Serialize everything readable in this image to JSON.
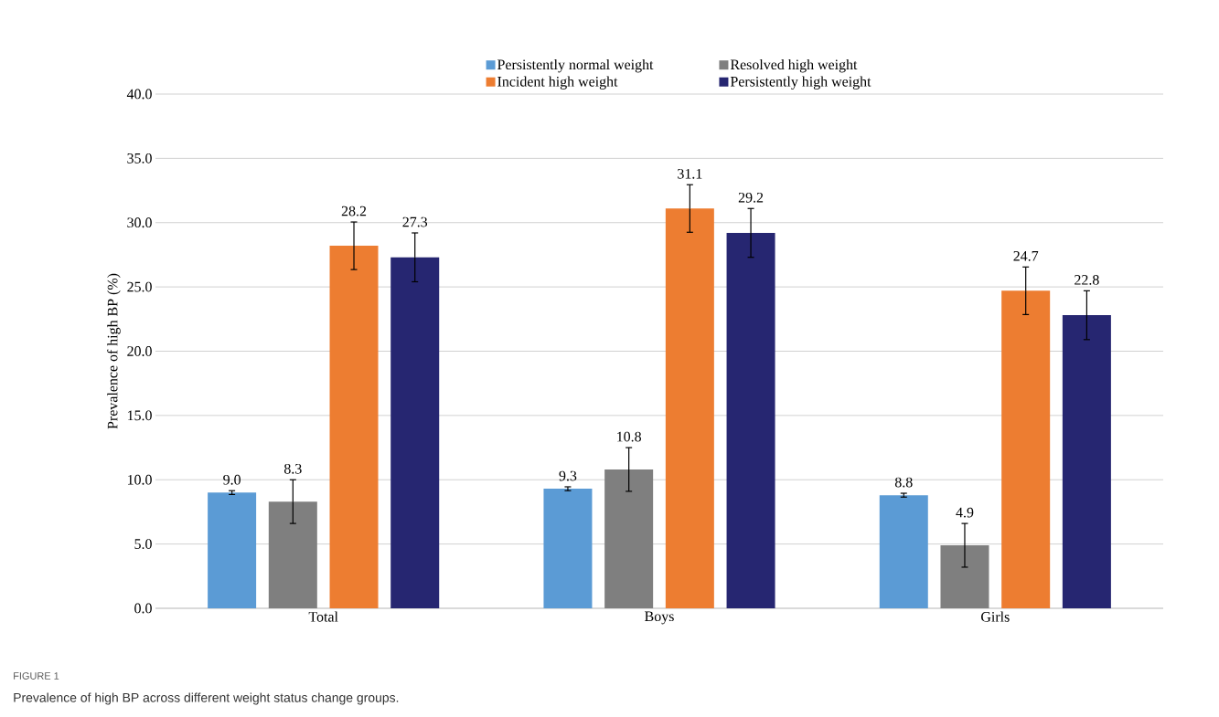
{
  "chart_data": {
    "type": "bar",
    "ylabel": "Prevalence of high BP (%)",
    "categories": [
      "Total",
      "Boys",
      "Girls"
    ],
    "series": [
      {
        "name": "Persistently normal weight",
        "color": "#5b9bd5",
        "values": [
          9.0,
          9.3,
          8.8
        ],
        "errors": [
          0.15,
          0.15,
          0.15
        ],
        "value_labels": [
          "9.0",
          "9.3",
          "8.8"
        ]
      },
      {
        "name": "Resolved high weight",
        "color": "#7f7f7f",
        "values": [
          8.3,
          10.8,
          4.9
        ],
        "errors": [
          1.7,
          1.7,
          1.7
        ],
        "value_labels": [
          "8.3",
          "10.8",
          "4.9"
        ]
      },
      {
        "name": "Incident high weight",
        "color": "#ed7d31",
        "values": [
          28.2,
          31.1,
          24.7
        ],
        "errors": [
          1.85,
          1.85,
          1.85
        ],
        "value_labels": [
          "28.2",
          "31.1",
          "24.7"
        ]
      },
      {
        "name": "Persistently high weight",
        "color": "#262671",
        "values": [
          27.3,
          29.2,
          22.8
        ],
        "errors": [
          1.9,
          1.9,
          1.9
        ],
        "value_labels": [
          "27.3",
          "29.2",
          "22.8"
        ]
      }
    ],
    "ylim": [
      0,
      40
    ],
    "yticks": [
      {
        "value": 0,
        "label": "0.0"
      },
      {
        "value": 5,
        "label": "5.0"
      },
      {
        "value": 10,
        "label": "10.0"
      },
      {
        "value": 15,
        "label": "15.0"
      },
      {
        "value": 20,
        "label": "20.0"
      },
      {
        "value": 25,
        "label": "25.0"
      },
      {
        "value": 30,
        "label": "30.0"
      },
      {
        "value": 35,
        "label": "35.0"
      },
      {
        "value": 40,
        "label": "40.0"
      }
    ],
    "grid": "y",
    "legend": "top",
    "annotations": [
      "FIGURE 1",
      "Prevalence of high BP across different weight status change groups."
    ]
  }
}
